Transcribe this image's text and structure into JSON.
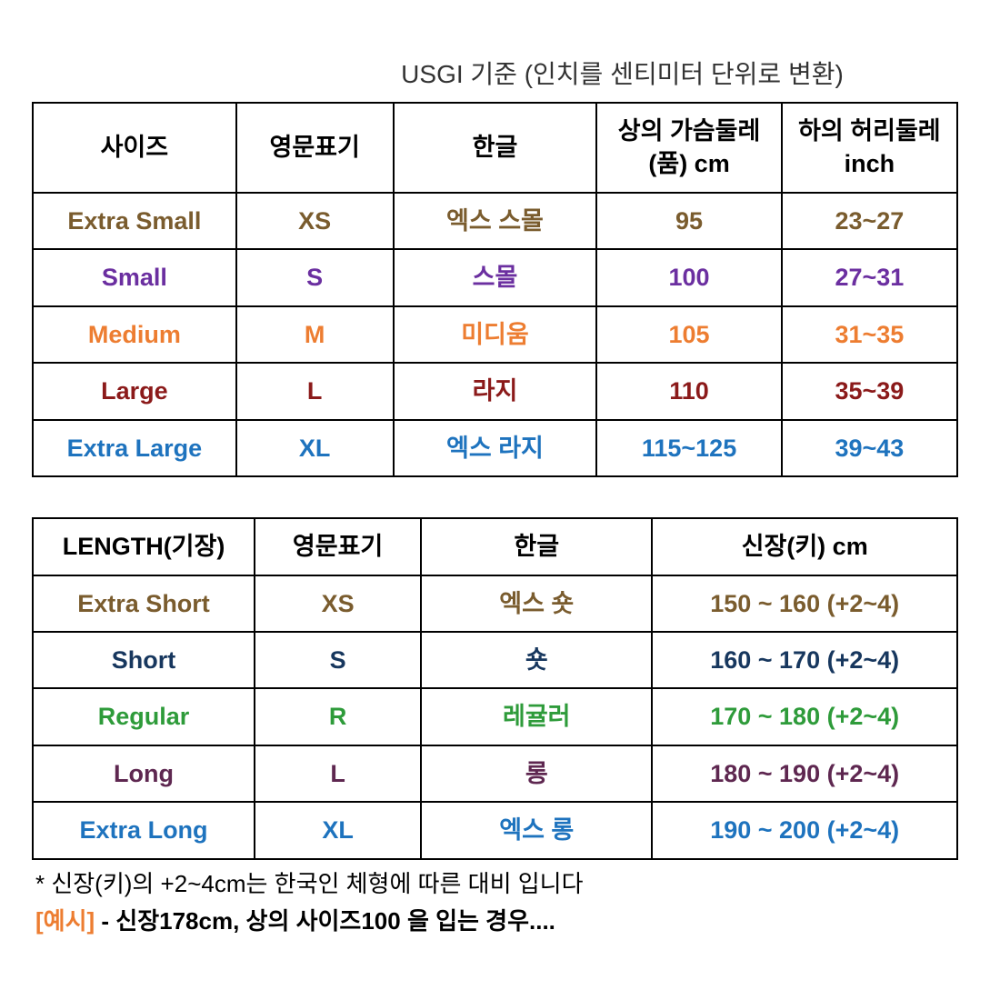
{
  "title": "USGI 기준 (인치를 센티미터 단위로 변환)",
  "colors": {
    "brown": "#7a5c2e",
    "purple": "#6b2fa0",
    "orange": "#ed7d31",
    "darkred": "#8b1a1a",
    "blue": "#1e73be",
    "navy": "#17375e",
    "green": "#2e9b3a",
    "plum": "#5e2750",
    "example_label": "#ed7d31"
  },
  "table1": {
    "headers": [
      "사이즈",
      "영문표기",
      "한글",
      "상의 가슴둘레 (품) cm",
      "하의 허리둘레 inch"
    ],
    "col_widths_pct": [
      22,
      17,
      22,
      20,
      19
    ],
    "rows": [
      {
        "cells": [
          "Extra Small",
          "XS",
          "엑스 스몰",
          "95",
          "23~27"
        ],
        "color_key": "brown"
      },
      {
        "cells": [
          "Small",
          "S",
          "스몰",
          "100",
          "27~31"
        ],
        "color_key": "purple"
      },
      {
        "cells": [
          "Medium",
          "M",
          "미디움",
          "105",
          "31~35"
        ],
        "color_key": "orange"
      },
      {
        "cells": [
          "Large",
          "L",
          "라지",
          "110",
          "35~39"
        ],
        "color_key": "darkred"
      },
      {
        "cells": [
          "Extra Large",
          "XL",
          "엑스 라지",
          "115~125",
          "39~43"
        ],
        "color_key": "blue"
      }
    ]
  },
  "table2": {
    "headers": [
      "LENGTH(기장)",
      "영문표기",
      "한글",
      "신장(키) cm"
    ],
    "col_widths_pct": [
      24,
      18,
      25,
      33
    ],
    "rows": [
      {
        "cells": [
          "Extra Short",
          "XS",
          "엑스 숏",
          "150 ~ 160 (+2~4)"
        ],
        "color_key": "brown"
      },
      {
        "cells": [
          "Short",
          "S",
          "숏",
          "160 ~ 170 (+2~4)"
        ],
        "color_key": "navy"
      },
      {
        "cells": [
          "Regular",
          "R",
          "레귤러",
          "170 ~ 180 (+2~4)"
        ],
        "color_key": "green"
      },
      {
        "cells": [
          "Long",
          "L",
          "롱",
          "180 ~ 190 (+2~4)"
        ],
        "color_key": "plum"
      },
      {
        "cells": [
          "Extra Long",
          "XL",
          "엑스 롱",
          "190 ~ 200 (+2~4)"
        ],
        "color_key": "blue"
      }
    ]
  },
  "footnote1": "* 신장(키)의 +2~4cm는 한국인 체형에 따른 대비 입니다",
  "footnote2_label": "[예시]",
  "footnote2_text": " - 신장178cm, 상의 사이즈100 을 입는 경우...."
}
